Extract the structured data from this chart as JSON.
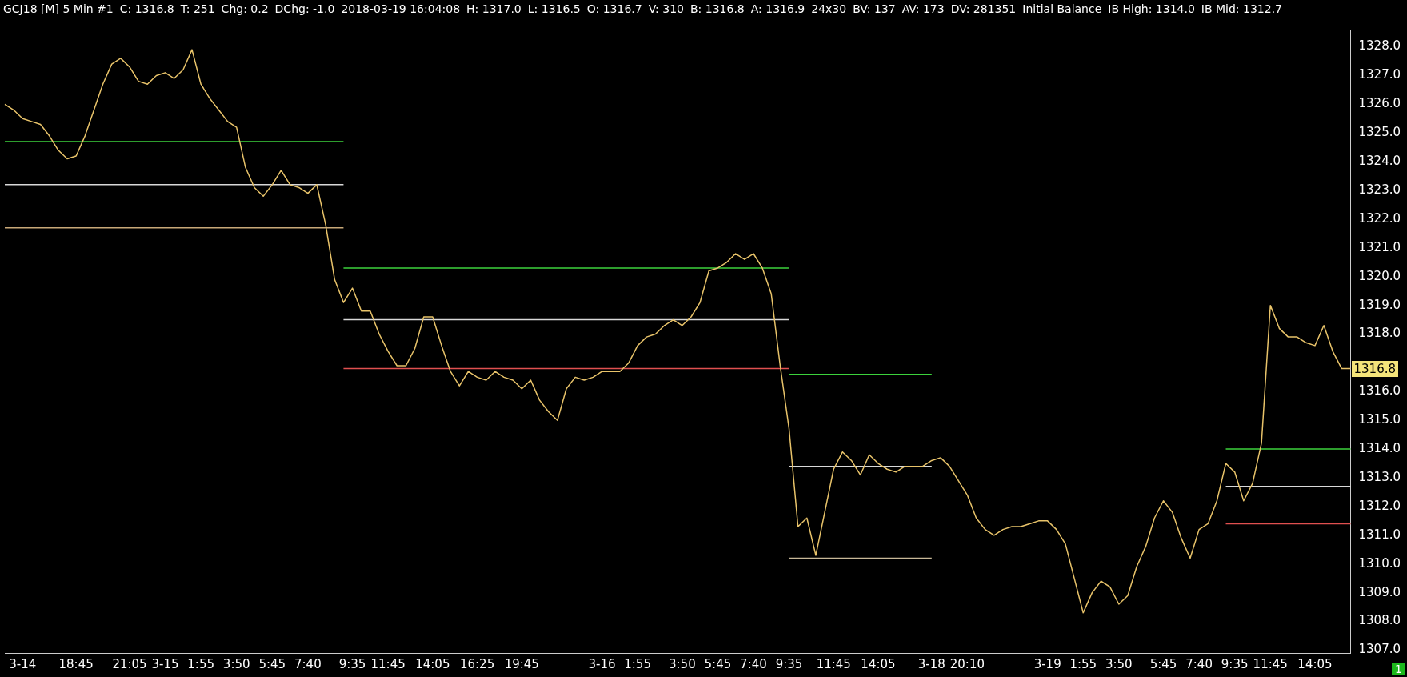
{
  "chart_data": {
    "type": "line",
    "title": "GCJ18 [M]   5 Min   #1",
    "annotations": [
      "C: 1316.8",
      "T: 251",
      "Chg: 0.2",
      "DChg: -1.0",
      "2018-03-19 16:04:08",
      "H: 1317.0",
      "L: 1316.5",
      "O: 1316.7",
      "V: 310",
      "B: 1316.8",
      "A: 1316.9",
      "24x30",
      "BV: 137",
      "AV: 173",
      "DV: 281351",
      "Initial Balance",
      "IB High: 1314.0",
      "IB Mid: 1312.7",
      "1316.8",
      "1"
    ],
    "categories": [
      null,
      null,
      "3-14",
      null,
      null,
      null,
      null,
      null,
      "18:45",
      null,
      null,
      null,
      null,
      null,
      "21:05",
      null,
      null,
      null,
      "3-15",
      null,
      null,
      null,
      "1:55",
      null,
      null,
      null,
      "3:50",
      null,
      null,
      null,
      "5:45",
      null,
      null,
      null,
      "7:40",
      null,
      null,
      null,
      null,
      "9:35",
      null,
      null,
      null,
      "11:45",
      null,
      null,
      null,
      null,
      "14:05",
      null,
      null,
      null,
      null,
      "16:25",
      null,
      null,
      null,
      null,
      "19:45",
      null,
      null,
      null,
      null,
      null,
      null,
      null,
      null,
      "3-16",
      null,
      null,
      null,
      "1:55",
      null,
      null,
      null,
      null,
      "3:50",
      null,
      null,
      null,
      "5:45",
      null,
      null,
      null,
      "7:40",
      null,
      null,
      null,
      "9:35",
      null,
      null,
      null,
      null,
      "11:45",
      null,
      null,
      null,
      null,
      "14:05",
      null,
      null,
      null,
      null,
      null,
      "3-18",
      null,
      null,
      null,
      "20:10",
      null,
      null,
      null,
      null,
      null,
      null,
      null,
      null,
      "3-19",
      null,
      null,
      null,
      "1:55",
      null,
      null,
      null,
      "3:50",
      null,
      null,
      null,
      null,
      "5:45",
      null,
      null,
      null,
      "7:40",
      null,
      null,
      null,
      "9:35",
      null,
      null,
      null,
      "11:45",
      null,
      null,
      null,
      null,
      "14:05",
      null,
      null,
      null,
      null
    ],
    "ylim": [
      1306.9,
      1328.6
    ],
    "yticks": [
      {
        "value": 1307,
        "label": "1307.0"
      },
      {
        "value": 1308,
        "label": "1308.0"
      },
      {
        "value": 1309,
        "label": "1309.0"
      },
      {
        "value": 1310,
        "label": "1310.0"
      },
      {
        "value": 1311,
        "label": "1311.0"
      },
      {
        "value": 1312,
        "label": "1312.0"
      },
      {
        "value": 1313,
        "label": "1313.0"
      },
      {
        "value": 1314,
        "label": "1314.0"
      },
      {
        "value": 1315,
        "label": "1315.0"
      },
      {
        "value": 1316,
        "label": "1316.0"
      },
      {
        "value": 1318,
        "label": "1318.0"
      },
      {
        "value": 1319,
        "label": "1319.0"
      },
      {
        "value": 1320,
        "label": "1320.0"
      },
      {
        "value": 1321,
        "label": "1321.0"
      },
      {
        "value": 1322,
        "label": "1322.0"
      },
      {
        "value": 1323,
        "label": "1323.0"
      },
      {
        "value": 1324,
        "label": "1324.0"
      },
      {
        "value": 1325,
        "label": "1325.0"
      },
      {
        "value": 1326,
        "label": "1326.0"
      },
      {
        "value": 1327,
        "label": "1327.0"
      },
      {
        "value": 1328,
        "label": "1328.0"
      }
    ],
    "grid": false,
    "legend": false,
    "marker": "none",
    "line_style": "solid",
    "series": [
      {
        "color": "#e8c36a",
        "values": [
          1326.0,
          1325.8,
          1325.5,
          1325.4,
          1325.3,
          1324.9,
          1324.4,
          1324.1,
          1324.2,
          1324.9,
          1325.8,
          1326.7,
          1327.4,
          1327.6,
          1327.3,
          1326.8,
          1326.7,
          1327.0,
          1327.1,
          1326.9,
          1327.2,
          1327.9,
          1326.7,
          1326.2,
          1325.8,
          1325.4,
          1325.2,
          1323.8,
          1323.1,
          1322.8,
          1323.2,
          1323.7,
          1323.2,
          1323.1,
          1322.9,
          1323.2,
          1321.8,
          1319.9,
          1319.1,
          1319.6,
          1318.8,
          1318.8,
          1318.0,
          1317.4,
          1316.9,
          1316.9,
          1317.5,
          1318.6,
          1318.6,
          1317.6,
          1316.7,
          1316.2,
          1316.7,
          1316.5,
          1316.4,
          1316.7,
          1316.5,
          1316.4,
          1316.1,
          1316.4,
          1315.7,
          1315.3,
          1315.0,
          1316.1,
          1316.5,
          1316.4,
          1316.5,
          1316.7,
          1316.7,
          1316.7,
          1317.0,
          1317.6,
          1317.9,
          1318.0,
          1318.3,
          1318.5,
          1318.3,
          1318.6,
          1319.1,
          1320.2,
          1320.3,
          1320.5,
          1320.8,
          1320.6,
          1320.8,
          1320.3,
          1319.4,
          1316.9,
          1314.7,
          1311.3,
          1311.6,
          1310.3,
          1311.8,
          1313.3,
          1313.9,
          1313.6,
          1313.1,
          1313.8,
          1313.5,
          1313.3,
          1313.2,
          1313.4,
          1313.4,
          1313.4,
          1313.6,
          1313.7,
          1313.4,
          1312.9,
          1312.4,
          1311.6,
          1311.2,
          1311.0,
          1311.2,
          1311.3,
          1311.3,
          1311.4,
          1311.5,
          1311.5,
          1311.2,
          1310.7,
          1309.5,
          1308.3,
          1309.0,
          1309.4,
          1309.2,
          1308.6,
          1308.9,
          1309.9,
          1310.6,
          1311.6,
          1312.2,
          1311.8,
          1310.9,
          1310.2,
          1311.2,
          1311.4,
          1312.2,
          1313.5,
          1313.2,
          1312.2,
          1312.8,
          1314.2,
          1319.0,
          1318.2,
          1317.9,
          1317.9,
          1317.7,
          1317.6,
          1318.3,
          1317.4,
          1316.8,
          1316.8
        ]
      },
      {
        "color": "#3cd23c",
        "values": [
          1324.7,
          1324.7,
          1324.7,
          1324.7,
          1324.7,
          1324.7,
          1324.7,
          1324.7,
          1324.7,
          1324.7,
          1324.7,
          1324.7,
          1324.7,
          1324.7,
          1324.7,
          1324.7,
          1324.7,
          1324.7,
          1324.7,
          1324.7,
          1324.7,
          1324.7,
          1324.7,
          1324.7,
          1324.7,
          1324.7,
          1324.7,
          1324.7,
          1324.7,
          1324.7,
          1324.7,
          1324.7,
          1324.7,
          1324.7,
          1324.7,
          1324.7,
          1324.7,
          1324.7,
          1324.7,
          null,
          null,
          null,
          null,
          null,
          null,
          null,
          null,
          null,
          null,
          null,
          null,
          null,
          null,
          null,
          null,
          null,
          null,
          null,
          null,
          null,
          null,
          null,
          null,
          null,
          null,
          null,
          null,
          null,
          null,
          null,
          null,
          null,
          null,
          null,
          null,
          null,
          null,
          null,
          null,
          null,
          null,
          null,
          null,
          null,
          null,
          null,
          null,
          null,
          null,
          null,
          null,
          null,
          null,
          null,
          null,
          null,
          null,
          null,
          null,
          null,
          null,
          null,
          null,
          null,
          null,
          null,
          null,
          null,
          null,
          null,
          null,
          null,
          null,
          null,
          null,
          null,
          null,
          null,
          null,
          null,
          null,
          null,
          null,
          null,
          null,
          null,
          null,
          null,
          null,
          null,
          null,
          null,
          null,
          null,
          null,
          null,
          null,
          null,
          null,
          null,
          null,
          null,
          null,
          null,
          null,
          null,
          null,
          null,
          null,
          null,
          null,
          null
        ]
      },
      {
        "color": "#d8d8d8",
        "values": [
          1323.2,
          1323.2,
          1323.2,
          1323.2,
          1323.2,
          1323.2,
          1323.2,
          1323.2,
          1323.2,
          1323.2,
          1323.2,
          1323.2,
          1323.2,
          1323.2,
          1323.2,
          1323.2,
          1323.2,
          1323.2,
          1323.2,
          1323.2,
          1323.2,
          1323.2,
          1323.2,
          1323.2,
          1323.2,
          1323.2,
          1323.2,
          1323.2,
          1323.2,
          1323.2,
          1323.2,
          1323.2,
          1323.2,
          1323.2,
          1323.2,
          1323.2,
          1323.2,
          1323.2,
          1323.2,
          null,
          null,
          null,
          null,
          null,
          null,
          null,
          null,
          null,
          null,
          null,
          null,
          null,
          null,
          null,
          null,
          null,
          null,
          null,
          null,
          null,
          null,
          null,
          null,
          null,
          null,
          null,
          null,
          null,
          null,
          null,
          null,
          null,
          null,
          null,
          null,
          null,
          null,
          null,
          null,
          null,
          null,
          null,
          null,
          null,
          null,
          null,
          null,
          null,
          null,
          null,
          null,
          null,
          null,
          null,
          null,
          null,
          null,
          null,
          null,
          null,
          null,
          null,
          null,
          null,
          null,
          null,
          null,
          null,
          null,
          null,
          null,
          null,
          null,
          null,
          null,
          null,
          null,
          null,
          null,
          null,
          null,
          null,
          null,
          null,
          null,
          null,
          null,
          null,
          null,
          null,
          null,
          null,
          null,
          null,
          null,
          null,
          null,
          null,
          null,
          null,
          null,
          null,
          null,
          null,
          null,
          null,
          null,
          null,
          null,
          null,
          null,
          null
        ]
      },
      {
        "color": "#c8a878",
        "values": [
          1321.7,
          1321.7,
          1321.7,
          1321.7,
          1321.7,
          1321.7,
          1321.7,
          1321.7,
          1321.7,
          1321.7,
          1321.7,
          1321.7,
          1321.7,
          1321.7,
          1321.7,
          1321.7,
          1321.7,
          1321.7,
          1321.7,
          1321.7,
          1321.7,
          1321.7,
          1321.7,
          1321.7,
          1321.7,
          1321.7,
          1321.7,
          1321.7,
          1321.7,
          1321.7,
          1321.7,
          1321.7,
          1321.7,
          1321.7,
          1321.7,
          1321.7,
          1321.7,
          1321.7,
          1321.7,
          null,
          null,
          null,
          null,
          null,
          null,
          null,
          null,
          null,
          null,
          null,
          null,
          null,
          null,
          null,
          null,
          null,
          null,
          null,
          null,
          null,
          null,
          null,
          null,
          null,
          null,
          null,
          null,
          null,
          null,
          null,
          null,
          null,
          null,
          null,
          null,
          null,
          null,
          null,
          null,
          null,
          null,
          null,
          null,
          null,
          null,
          null,
          null,
          null,
          null,
          null,
          null,
          null,
          null,
          null,
          null,
          null,
          null,
          null,
          null,
          null,
          null,
          null,
          null,
          null,
          null,
          null,
          null,
          null,
          null,
          null,
          null,
          null,
          null,
          null,
          null,
          null,
          null,
          null,
          null,
          null,
          null,
          null,
          null,
          null,
          null,
          null,
          null,
          null,
          null,
          null,
          null,
          null,
          null,
          null,
          null,
          null,
          null,
          null,
          null,
          null,
          null,
          null,
          null,
          null,
          null,
          null,
          null,
          null,
          null,
          null,
          null,
          null
        ]
      },
      {
        "color": "#3cd23c",
        "values": [
          null,
          null,
          null,
          null,
          null,
          null,
          null,
          null,
          null,
          null,
          null,
          null,
          null,
          null,
          null,
          null,
          null,
          null,
          null,
          null,
          null,
          null,
          null,
          null,
          null,
          null,
          null,
          null,
          null,
          null,
          null,
          null,
          null,
          null,
          null,
          null,
          null,
          null,
          1320.3,
          1320.3,
          1320.3,
          1320.3,
          1320.3,
          1320.3,
          1320.3,
          1320.3,
          1320.3,
          1320.3,
          1320.3,
          1320.3,
          1320.3,
          1320.3,
          1320.3,
          1320.3,
          1320.3,
          1320.3,
          1320.3,
          1320.3,
          1320.3,
          1320.3,
          1320.3,
          1320.3,
          1320.3,
          1320.3,
          1320.3,
          1320.3,
          1320.3,
          1320.3,
          1320.3,
          1320.3,
          1320.3,
          1320.3,
          1320.3,
          1320.3,
          1320.3,
          1320.3,
          1320.3,
          1320.3,
          1320.3,
          1320.3,
          1320.3,
          1320.3,
          1320.3,
          1320.3,
          1320.3,
          1320.3,
          1320.3,
          1320.3,
          1320.3,
          null,
          null,
          null,
          null,
          null,
          null,
          null,
          null,
          null,
          null,
          null,
          null,
          null,
          null,
          null,
          null,
          null,
          null,
          null,
          null,
          null,
          null,
          null,
          null,
          null,
          null,
          null,
          null,
          null,
          null,
          null,
          null,
          null,
          null,
          null,
          null,
          null,
          null,
          null,
          null,
          null,
          null,
          null,
          null,
          null,
          null,
          null,
          null,
          null,
          null,
          null,
          null,
          null,
          null,
          null,
          null,
          null,
          null,
          null,
          null,
          null,
          null,
          null
        ]
      },
      {
        "color": "#d8d8d8",
        "values": [
          null,
          null,
          null,
          null,
          null,
          null,
          null,
          null,
          null,
          null,
          null,
          null,
          null,
          null,
          null,
          null,
          null,
          null,
          null,
          null,
          null,
          null,
          null,
          null,
          null,
          null,
          null,
          null,
          null,
          null,
          null,
          null,
          null,
          null,
          null,
          null,
          null,
          null,
          1318.5,
          1318.5,
          1318.5,
          1318.5,
          1318.5,
          1318.5,
          1318.5,
          1318.5,
          1318.5,
          1318.5,
          1318.5,
          1318.5,
          1318.5,
          1318.5,
          1318.5,
          1318.5,
          1318.5,
          1318.5,
          1318.5,
          1318.5,
          1318.5,
          1318.5,
          1318.5,
          1318.5,
          1318.5,
          1318.5,
          1318.5,
          1318.5,
          1318.5,
          1318.5,
          1318.5,
          1318.5,
          1318.5,
          1318.5,
          1318.5,
          1318.5,
          1318.5,
          1318.5,
          1318.5,
          1318.5,
          1318.5,
          1318.5,
          1318.5,
          1318.5,
          1318.5,
          1318.5,
          1318.5,
          1318.5,
          1318.5,
          1318.5,
          1318.5,
          null,
          null,
          null,
          null,
          null,
          null,
          null,
          null,
          null,
          null,
          null,
          null,
          null,
          null,
          null,
          null,
          null,
          null,
          null,
          null,
          null,
          null,
          null,
          null,
          null,
          null,
          null,
          null,
          null,
          null,
          null,
          null,
          null,
          null,
          null,
          null,
          null,
          null,
          null,
          null,
          null,
          null,
          null,
          null,
          null,
          null,
          null,
          null,
          null,
          null,
          null,
          null,
          null,
          null,
          null,
          null,
          null,
          null,
          null,
          null,
          null,
          null,
          null
        ]
      },
      {
        "color": "#e05050",
        "values": [
          null,
          null,
          null,
          null,
          null,
          null,
          null,
          null,
          null,
          null,
          null,
          null,
          null,
          null,
          null,
          null,
          null,
          null,
          null,
          null,
          null,
          null,
          null,
          null,
          null,
          null,
          null,
          null,
          null,
          null,
          null,
          null,
          null,
          null,
          null,
          null,
          null,
          null,
          1316.8,
          1316.8,
          1316.8,
          1316.8,
          1316.8,
          1316.8,
          1316.8,
          1316.8,
          1316.8,
          1316.8,
          1316.8,
          1316.8,
          1316.8,
          1316.8,
          1316.8,
          1316.8,
          1316.8,
          1316.8,
          1316.8,
          1316.8,
          1316.8,
          1316.8,
          1316.8,
          1316.8,
          1316.8,
          1316.8,
          1316.8,
          1316.8,
          1316.8,
          1316.8,
          1316.8,
          1316.8,
          1316.8,
          1316.8,
          1316.8,
          1316.8,
          1316.8,
          1316.8,
          1316.8,
          1316.8,
          1316.8,
          1316.8,
          1316.8,
          1316.8,
          1316.8,
          1316.8,
          1316.8,
          1316.8,
          1316.8,
          1316.8,
          1316.8,
          null,
          null,
          null,
          null,
          null,
          null,
          null,
          null,
          null,
          null,
          null,
          null,
          null,
          null,
          null,
          null,
          null,
          null,
          null,
          null,
          null,
          null,
          null,
          null,
          null,
          null,
          null,
          null,
          null,
          null,
          null,
          null,
          null,
          null,
          null,
          null,
          null,
          null,
          null,
          null,
          null,
          null,
          null,
          null,
          null,
          null,
          null,
          null,
          null,
          null,
          null,
          null,
          null,
          null,
          null,
          null,
          null,
          null,
          null,
          null,
          null,
          null,
          null
        ]
      },
      {
        "color": "#3cd23c",
        "values": [
          null,
          null,
          null,
          null,
          null,
          null,
          null,
          null,
          null,
          null,
          null,
          null,
          null,
          null,
          null,
          null,
          null,
          null,
          null,
          null,
          null,
          null,
          null,
          null,
          null,
          null,
          null,
          null,
          null,
          null,
          null,
          null,
          null,
          null,
          null,
          null,
          null,
          null,
          null,
          null,
          null,
          null,
          null,
          null,
          null,
          null,
          null,
          null,
          null,
          null,
          null,
          null,
          null,
          null,
          null,
          null,
          null,
          null,
          null,
          null,
          null,
          null,
          null,
          null,
          null,
          null,
          null,
          null,
          null,
          null,
          null,
          null,
          null,
          null,
          null,
          null,
          null,
          null,
          null,
          null,
          null,
          null,
          null,
          null,
          null,
          null,
          null,
          null,
          1316.6,
          1316.6,
          1316.6,
          1316.6,
          1316.6,
          1316.6,
          1316.6,
          1316.6,
          1316.6,
          1316.6,
          1316.6,
          1316.6,
          1316.6,
          1316.6,
          1316.6,
          1316.6,
          1316.6,
          null,
          null,
          null,
          null,
          null,
          null,
          null,
          null,
          null,
          null,
          null,
          null,
          null,
          null,
          null,
          null,
          null,
          null,
          null,
          null,
          null,
          null,
          null,
          null,
          null,
          null,
          null,
          null,
          null,
          null,
          null,
          null,
          null,
          null,
          null,
          null,
          null,
          null,
          null,
          null,
          null,
          null,
          null,
          null,
          null,
          null,
          null
        ]
      },
      {
        "color": "#d8d8d8",
        "values": [
          null,
          null,
          null,
          null,
          null,
          null,
          null,
          null,
          null,
          null,
          null,
          null,
          null,
          null,
          null,
          null,
          null,
          null,
          null,
          null,
          null,
          null,
          null,
          null,
          null,
          null,
          null,
          null,
          null,
          null,
          null,
          null,
          null,
          null,
          null,
          null,
          null,
          null,
          null,
          null,
          null,
          null,
          null,
          null,
          null,
          null,
          null,
          null,
          null,
          null,
          null,
          null,
          null,
          null,
          null,
          null,
          null,
          null,
          null,
          null,
          null,
          null,
          null,
          null,
          null,
          null,
          null,
          null,
          null,
          null,
          null,
          null,
          null,
          null,
          null,
          null,
          null,
          null,
          null,
          null,
          null,
          null,
          null,
          null,
          null,
          null,
          null,
          null,
          1313.4,
          1313.4,
          1313.4,
          1313.4,
          1313.4,
          1313.4,
          1313.4,
          1313.4,
          1313.4,
          1313.4,
          1313.4,
          1313.4,
          1313.4,
          1313.4,
          1313.4,
          1313.4,
          1313.4,
          null,
          null,
          null,
          null,
          null,
          null,
          null,
          null,
          null,
          null,
          null,
          null,
          null,
          null,
          null,
          null,
          null,
          null,
          null,
          null,
          null,
          null,
          null,
          null,
          null,
          null,
          null,
          null,
          null,
          null,
          null,
          null,
          null,
          null,
          null,
          null,
          null,
          null,
          null,
          null,
          null,
          null,
          null,
          null,
          null,
          null,
          null
        ]
      },
      {
        "color": "#c8b898",
        "values": [
          null,
          null,
          null,
          null,
          null,
          null,
          null,
          null,
          null,
          null,
          null,
          null,
          null,
          null,
          null,
          null,
          null,
          null,
          null,
          null,
          null,
          null,
          null,
          null,
          null,
          null,
          null,
          null,
          null,
          null,
          null,
          null,
          null,
          null,
          null,
          null,
          null,
          null,
          null,
          null,
          null,
          null,
          null,
          null,
          null,
          null,
          null,
          null,
          null,
          null,
          null,
          null,
          null,
          null,
          null,
          null,
          null,
          null,
          null,
          null,
          null,
          null,
          null,
          null,
          null,
          null,
          null,
          null,
          null,
          null,
          null,
          null,
          null,
          null,
          null,
          null,
          null,
          null,
          null,
          null,
          null,
          null,
          null,
          null,
          null,
          null,
          null,
          null,
          1310.2,
          1310.2,
          1310.2,
          1310.2,
          1310.2,
          1310.2,
          1310.2,
          1310.2,
          1310.2,
          1310.2,
          1310.2,
          1310.2,
          1310.2,
          1310.2,
          1310.2,
          1310.2,
          1310.2,
          null,
          null,
          null,
          null,
          null,
          null,
          null,
          null,
          null,
          null,
          null,
          null,
          null,
          null,
          null,
          null,
          null,
          null,
          null,
          null,
          null,
          null,
          null,
          null,
          null,
          null,
          null,
          null,
          null,
          null,
          null,
          null,
          null,
          null,
          null,
          null,
          null,
          null,
          null,
          null,
          null,
          null,
          null,
          null,
          null,
          null,
          null
        ]
      },
      {
        "color": "#3cd23c",
        "values": [
          null,
          null,
          null,
          null,
          null,
          null,
          null,
          null,
          null,
          null,
          null,
          null,
          null,
          null,
          null,
          null,
          null,
          null,
          null,
          null,
          null,
          null,
          null,
          null,
          null,
          null,
          null,
          null,
          null,
          null,
          null,
          null,
          null,
          null,
          null,
          null,
          null,
          null,
          null,
          null,
          null,
          null,
          null,
          null,
          null,
          null,
          null,
          null,
          null,
          null,
          null,
          null,
          null,
          null,
          null,
          null,
          null,
          null,
          null,
          null,
          null,
          null,
          null,
          null,
          null,
          null,
          null,
          null,
          null,
          null,
          null,
          null,
          null,
          null,
          null,
          null,
          null,
          null,
          null,
          null,
          null,
          null,
          null,
          null,
          null,
          null,
          null,
          null,
          null,
          null,
          null,
          null,
          null,
          null,
          null,
          null,
          null,
          null,
          null,
          null,
          null,
          null,
          null,
          null,
          null,
          null,
          null,
          null,
          null,
          null,
          null,
          null,
          null,
          null,
          null,
          null,
          null,
          null,
          null,
          null,
          null,
          null,
          null,
          null,
          null,
          null,
          null,
          null,
          null,
          null,
          null,
          null,
          null,
          null,
          null,
          null,
          null,
          1314.0,
          1314.0,
          1314.0,
          1314.0,
          1314.0,
          1314.0,
          1314.0,
          1314.0,
          1314.0,
          1314.0,
          1314.0,
          1314.0,
          1314.0,
          1314.0,
          1314.0
        ]
      },
      {
        "color": "#d8d8d8",
        "values": [
          null,
          null,
          null,
          null,
          null,
          null,
          null,
          null,
          null,
          null,
          null,
          null,
          null,
          null,
          null,
          null,
          null,
          null,
          null,
          null,
          null,
          null,
          null,
          null,
          null,
          null,
          null,
          null,
          null,
          null,
          null,
          null,
          null,
          null,
          null,
          null,
          null,
          null,
          null,
          null,
          null,
          null,
          null,
          null,
          null,
          null,
          null,
          null,
          null,
          null,
          null,
          null,
          null,
          null,
          null,
          null,
          null,
          null,
          null,
          null,
          null,
          null,
          null,
          null,
          null,
          null,
          null,
          null,
          null,
          null,
          null,
          null,
          null,
          null,
          null,
          null,
          null,
          null,
          null,
          null,
          null,
          null,
          null,
          null,
          null,
          null,
          null,
          null,
          null,
          null,
          null,
          null,
          null,
          null,
          null,
          null,
          null,
          null,
          null,
          null,
          null,
          null,
          null,
          null,
          null,
          null,
          null,
          null,
          null,
          null,
          null,
          null,
          null,
          null,
          null,
          null,
          null,
          null,
          null,
          null,
          null,
          null,
          null,
          null,
          null,
          null,
          null,
          null,
          null,
          null,
          null,
          null,
          null,
          null,
          null,
          null,
          null,
          1312.7,
          1312.7,
          1312.7,
          1312.7,
          1312.7,
          1312.7,
          1312.7,
          1312.7,
          1312.7,
          1312.7,
          1312.7,
          1312.7,
          1312.7,
          1312.7,
          1312.7
        ]
      },
      {
        "color": "#e05050",
        "values": [
          null,
          null,
          null,
          null,
          null,
          null,
          null,
          null,
          null,
          null,
          null,
          null,
          null,
          null,
          null,
          null,
          null,
          null,
          null,
          null,
          null,
          null,
          null,
          null,
          null,
          null,
          null,
          null,
          null,
          null,
          null,
          null,
          null,
          null,
          null,
          null,
          null,
          null,
          null,
          null,
          null,
          null,
          null,
          null,
          null,
          null,
          null,
          null,
          null,
          null,
          null,
          null,
          null,
          null,
          null,
          null,
          null,
          null,
          null,
          null,
          null,
          null,
          null,
          null,
          null,
          null,
          null,
          null,
          null,
          null,
          null,
          null,
          null,
          null,
          null,
          null,
          null,
          null,
          null,
          null,
          null,
          null,
          null,
          null,
          null,
          null,
          null,
          null,
          null,
          null,
          null,
          null,
          null,
          null,
          null,
          null,
          null,
          null,
          null,
          null,
          null,
          null,
          null,
          null,
          null,
          null,
          null,
          null,
          null,
          null,
          null,
          null,
          null,
          null,
          null,
          null,
          null,
          null,
          null,
          null,
          null,
          null,
          null,
          null,
          null,
          null,
          null,
          null,
          null,
          null,
          null,
          null,
          null,
          null,
          null,
          null,
          null,
          1311.4,
          1311.4,
          1311.4,
          1311.4,
          1311.4,
          1311.4,
          1311.4,
          1311.4,
          1311.4,
          1311.4,
          1311.4,
          1311.4,
          1311.4,
          1311.4,
          1311.4
        ]
      }
    ]
  }
}
